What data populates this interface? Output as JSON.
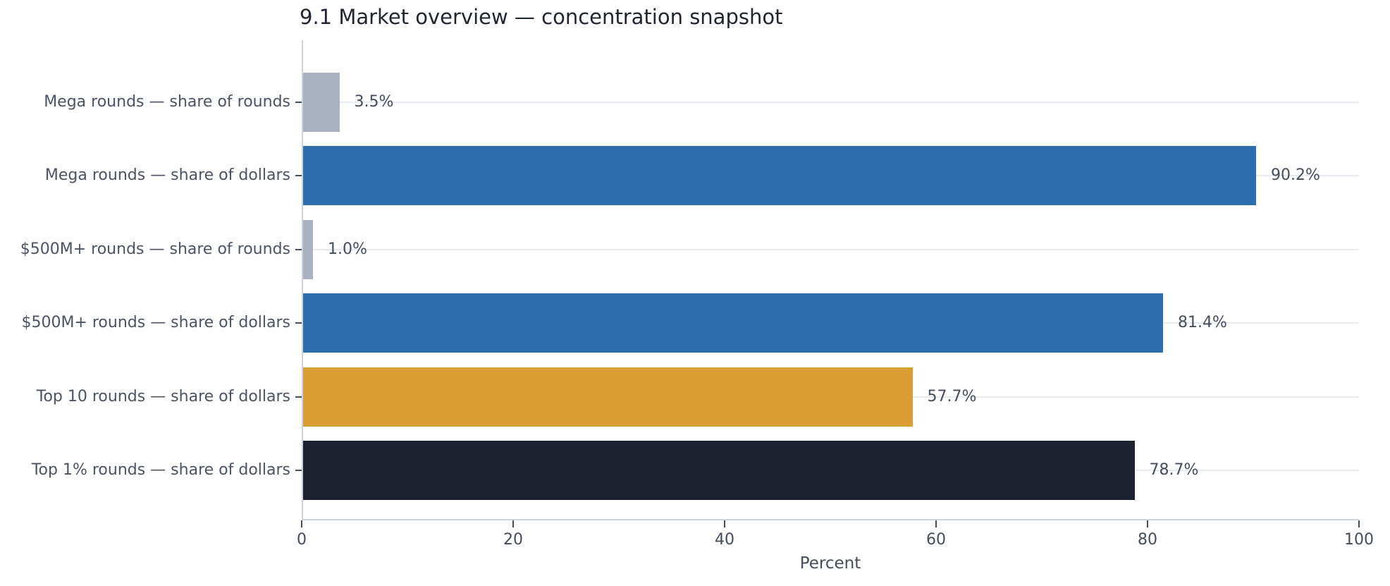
{
  "title": "9.1 Market overview — concentration snapshot",
  "colors": {
    "bar_gray": "#a8b2c0",
    "bar_blue": "#2b6dad",
    "bar_orange": "#d99d33",
    "bar_dark": "#1b212e",
    "gridline": "#e7eaf1",
    "spine": "#ccd3db",
    "tick_mark": "#454e5c",
    "title_text": "#1f2631",
    "label_text": "#4a5365",
    "value_text": "#434d5d"
  },
  "chart_data": {
    "type": "bar",
    "orientation": "horizontal",
    "title": "9.1 Market overview — concentration snapshot",
    "xlabel": "Percent",
    "xlim": [
      0,
      100
    ],
    "xticks": [
      0,
      20,
      40,
      60,
      80,
      100
    ],
    "grid": "horizontal category gridlines only",
    "legend": "none",
    "categories": [
      "Mega rounds — share of rounds",
      "Mega rounds — share of dollars",
      "$500M+ rounds — share of rounds",
      "$500M+ rounds — share of dollars",
      "Top 10 rounds — share of dollars",
      "Top 1% rounds — share of dollars"
    ],
    "values": [
      3.5,
      90.2,
      1.0,
      81.4,
      57.7,
      78.7
    ],
    "value_labels": [
      "3.5%",
      "90.2%",
      "1.0%",
      "81.4%",
      "57.7%",
      "78.7%"
    ],
    "bar_colors": [
      "#a8b2c0",
      "#2b6dad",
      "#a8b2c0",
      "#2b6dad",
      "#d99d33",
      "#1b212e"
    ]
  }
}
